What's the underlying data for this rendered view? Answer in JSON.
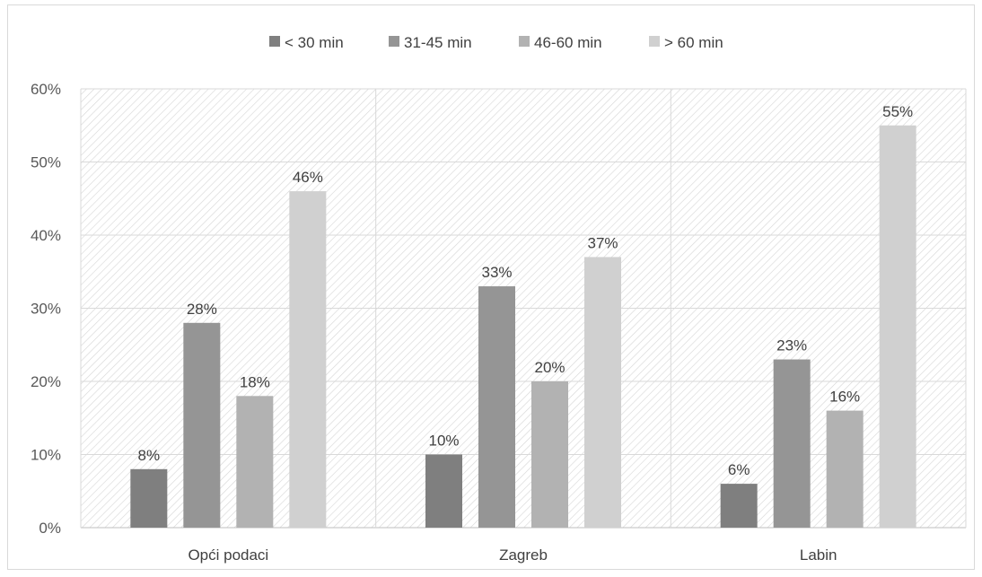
{
  "chart_data": {
    "type": "bar",
    "title": "",
    "xlabel": "",
    "ylabel": "",
    "categories": [
      "Opći podaci",
      "Zagreb",
      "Labin"
    ],
    "series": [
      {
        "name": "< 30 min",
        "values": [
          8,
          10,
          6
        ],
        "color": "#7f7f7f"
      },
      {
        "name": "31-45 min",
        "values": [
          28,
          33,
          23
        ],
        "color": "#959595"
      },
      {
        "name": "46-60 min",
        "values": [
          18,
          20,
          16
        ],
        "color": "#b2b2b2"
      },
      {
        "name": "> 60 min",
        "values": [
          46,
          37,
          55
        ],
        "color": "#d0d0d0"
      }
    ],
    "value_suffix": "%",
    "ylim": [
      0,
      60
    ],
    "yticks": [
      "0%",
      "10%",
      "20%",
      "30%",
      "40%",
      "50%",
      "60%"
    ],
    "grid": true,
    "legend_position": "top",
    "plot_background": "diagonal-hatch"
  }
}
